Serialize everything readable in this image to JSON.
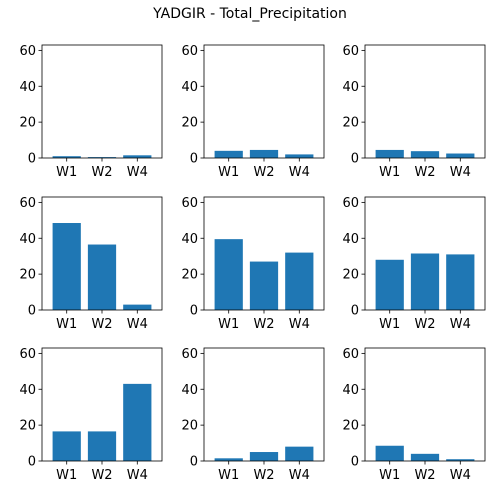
{
  "chart_data": {
    "type": "bar",
    "title": "YADGIR - Total_Precipitation",
    "categories": [
      "W1",
      "W2",
      "W4"
    ],
    "ylim": [
      0,
      63
    ],
    "yticks": [
      0,
      20,
      40,
      60
    ],
    "bar_color": "#1f77b4",
    "grid": false,
    "panels": [
      {
        "values": [
          1.0,
          0.5,
          1.5
        ]
      },
      {
        "values": [
          4.0,
          4.5,
          2.0
        ]
      },
      {
        "values": [
          4.5,
          3.8,
          2.5
        ]
      },
      {
        "values": [
          48.5,
          36.5,
          3.0
        ]
      },
      {
        "values": [
          39.5,
          27.0,
          32.0
        ]
      },
      {
        "values": [
          28.0,
          31.5,
          31.0
        ]
      },
      {
        "values": [
          16.5,
          16.5,
          43.0
        ]
      },
      {
        "values": [
          1.5,
          5.0,
          8.0
        ]
      },
      {
        "values": [
          8.5,
          4.0,
          1.0
        ]
      }
    ]
  }
}
